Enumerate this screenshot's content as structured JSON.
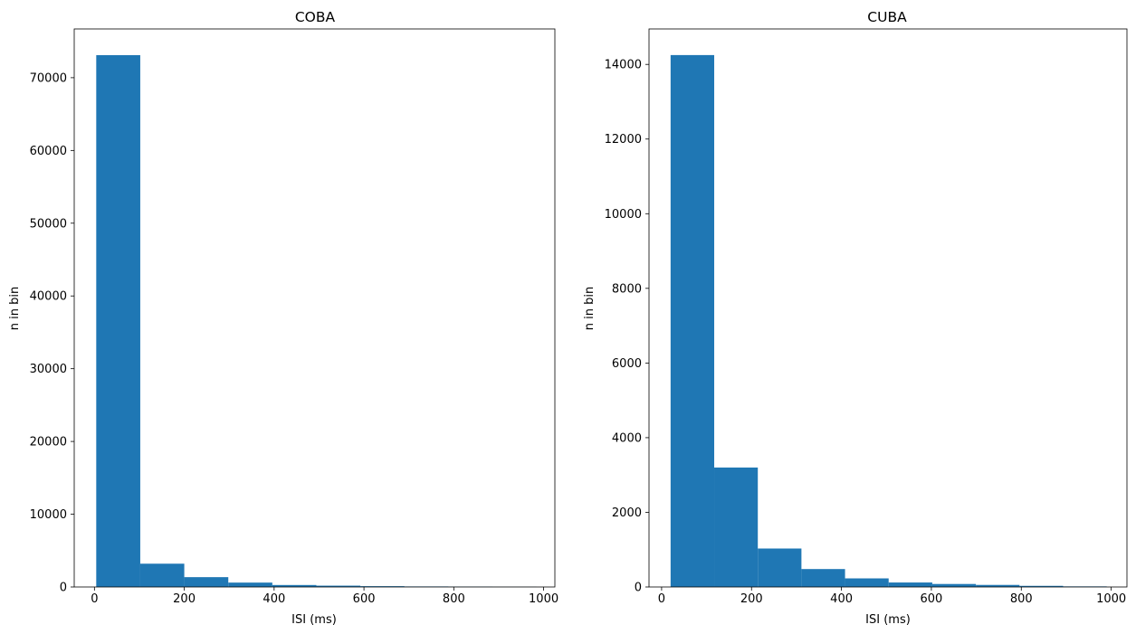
{
  "chart_data": [
    {
      "type": "bar",
      "title": "COBA",
      "xlabel": "ISI (ms)",
      "ylabel": "n in bin",
      "xlim": [
        -45,
        1025
      ],
      "ylim": [
        0,
        76700
      ],
      "xticks": [
        0,
        200,
        400,
        600,
        800,
        1000
      ],
      "yticks": [
        0,
        10000,
        20000,
        30000,
        40000,
        50000,
        60000,
        70000
      ],
      "bin_edges": [
        4,
        102,
        200,
        298,
        396,
        494,
        592,
        690,
        788,
        886,
        984
      ],
      "values": [
        73100,
        3200,
        1350,
        600,
        270,
        180,
        110,
        70,
        40,
        20
      ],
      "color": "#1f77b4",
      "grid": false
    },
    {
      "type": "bar",
      "title": "CUBA",
      "xlabel": "ISI (ms)",
      "ylabel": "n in bin",
      "xlim": [
        -28,
        1035
      ],
      "ylim": [
        0,
        14950
      ],
      "xticks": [
        0,
        200,
        400,
        600,
        800,
        1000
      ],
      "yticks": [
        0,
        2000,
        4000,
        6000,
        8000,
        10000,
        12000,
        14000
      ],
      "bin_edges": [
        20,
        117,
        214,
        311,
        408,
        505,
        602,
        699,
        796,
        893,
        990
      ],
      "values": [
        14250,
        3200,
        1030,
        480,
        230,
        120,
        80,
        55,
        30,
        15
      ],
      "color": "#1f77b4",
      "grid": false
    }
  ]
}
